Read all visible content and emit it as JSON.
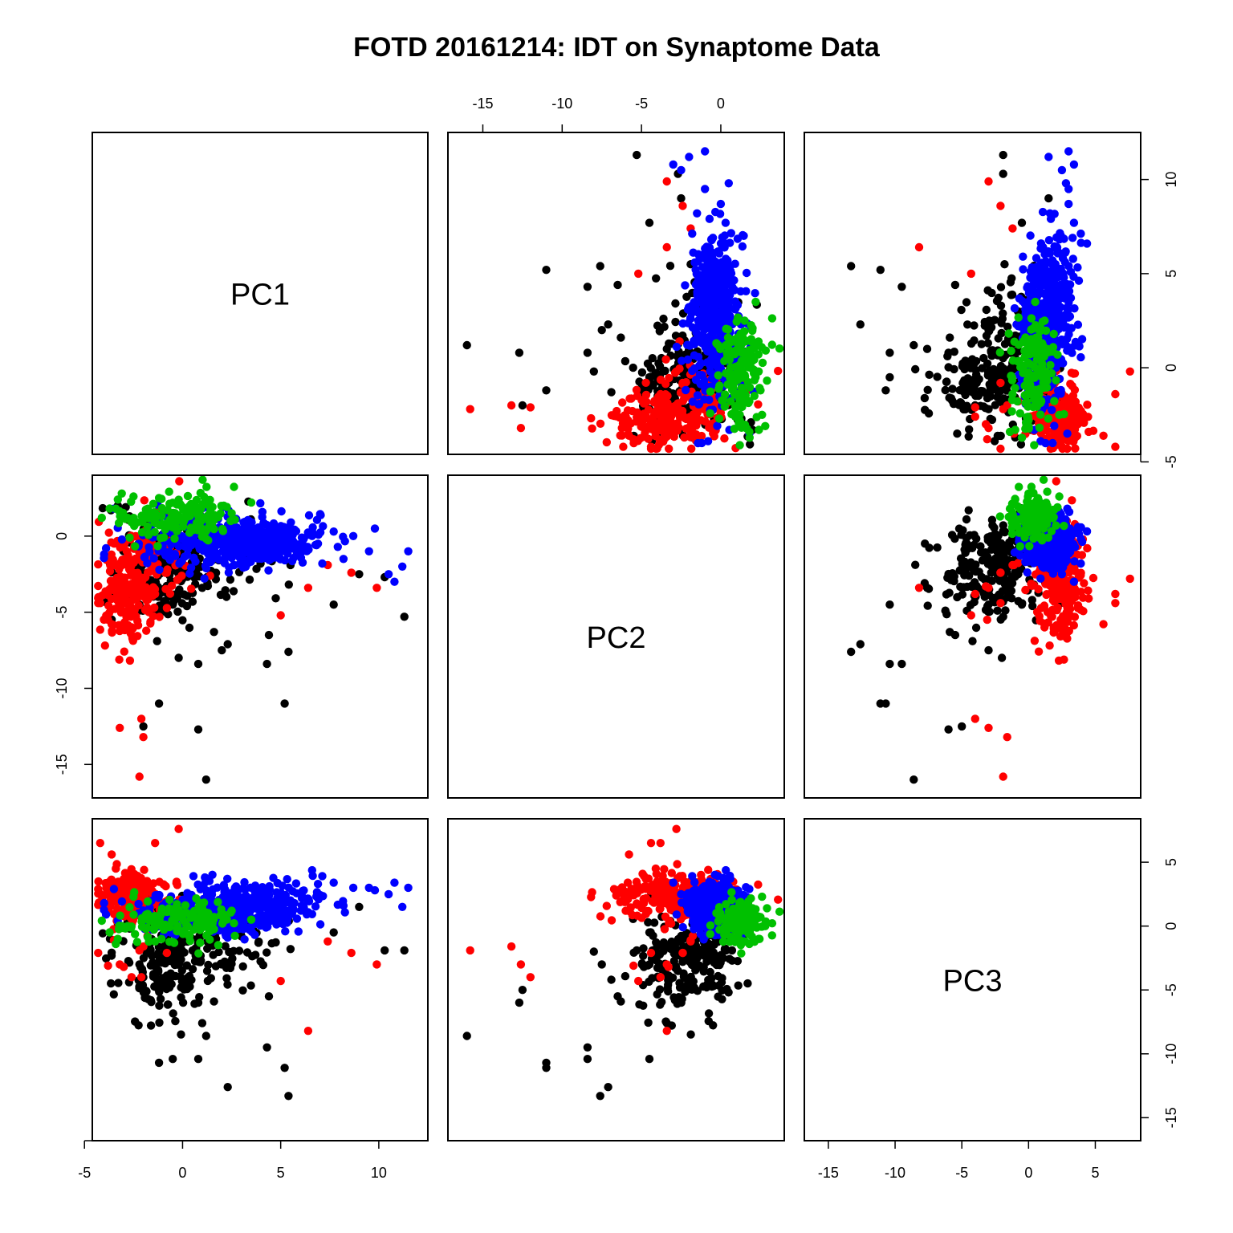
{
  "chart_data": {
    "type": "scatter",
    "title": "FOTD 20161214: IDT on Synaptome Data",
    "variables": [
      "PC1",
      "PC2",
      "PC3"
    ],
    "ranges": {
      "PC1": [
        -4.6,
        12.5
      ],
      "PC2": [
        -17.2,
        4.0
      ],
      "PC3": [
        -16.8,
        8.4
      ]
    },
    "ticks": {
      "PC1": [
        -5,
        0,
        5,
        10
      ],
      "PC2": [
        -15,
        -10,
        -5,
        0
      ],
      "PC3": [
        -15,
        -10,
        -5,
        0,
        5
      ]
    },
    "tick_labels": {
      "PC1": [
        "-5",
        "0",
        "5",
        "10"
      ],
      "PC2": [
        "-15",
        "-10",
        "-5",
        "0"
      ],
      "PC3": [
        "-15",
        "-10",
        "-5",
        "0",
        "5"
      ]
    },
    "grid": false,
    "point_count_per_group": [
      260,
      240,
      460,
      150
    ],
    "groups": [
      {
        "color": "#000000",
        "anchors": [
          [
            11.3,
            -5.3,
            -1.9
          ],
          [
            10.3,
            -2.7,
            -1.9
          ],
          [
            9.0,
            -2.5,
            1.5
          ],
          [
            7.7,
            -4.5,
            -0.5
          ],
          [
            5.4,
            -7.6,
            -13.3
          ],
          [
            5.2,
            -11.0,
            -11.1
          ],
          [
            4.3,
            -8.4,
            -9.5
          ],
          [
            4.4,
            -6.5,
            -5.5
          ],
          [
            2.3,
            -7.1,
            -12.6
          ],
          [
            1.6,
            -6.3,
            -5.9
          ],
          [
            1.2,
            -16.0,
            -8.6
          ],
          [
            0.8,
            -8.4,
            -10.4
          ],
          [
            0.8,
            -12.7,
            -6.0
          ],
          [
            1.0,
            -3.4,
            -7.6
          ],
          [
            -0.5,
            -4.5,
            -10.4
          ],
          [
            -1.2,
            -11.0,
            -10.7
          ],
          [
            -2.0,
            -12.5,
            -5.0
          ],
          [
            -1.3,
            -6.9,
            -4.2
          ],
          [
            -2.2,
            -4.5,
            -3.0
          ],
          [
            -3.7,
            -1.8,
            -1.0
          ],
          [
            -3.3,
            2.0,
            0.2
          ],
          [
            -2.9,
            1.9,
            1.1
          ],
          [
            -2.7,
            1.3,
            -0.2
          ],
          [
            3.0,
            -1.2,
            -0.8
          ],
          [
            5.5,
            -1.9,
            -1.8
          ],
          [
            -0.2,
            -8.0,
            -2.0
          ],
          [
            0.0,
            -2.8,
            -1.3
          ],
          [
            2.0,
            -7.5,
            -3.0
          ]
        ],
        "clouds": [
          {
            "c": [
              -1.0,
              -2.5,
              -3.2
            ],
            "s": [
              1.2,
              1.8,
              2.2
            ],
            "n": 150
          },
          {
            "c": [
              1.0,
              -1.2,
              -2.1
            ],
            "s": [
              2.2,
              1.4,
              1.5
            ],
            "n": 80
          }
        ]
      },
      {
        "color": "#ff0000",
        "anchors": [
          [
            -2.1,
            -12.0,
            -4.0
          ],
          [
            -2.2,
            -15.8,
            -1.9
          ],
          [
            -2.6,
            -3.8,
            -4.0
          ],
          [
            -3.2,
            -12.6,
            -3.0
          ],
          [
            -3.0,
            -3.3,
            -3.2
          ],
          [
            -2.0,
            -13.2,
            -1.6
          ],
          [
            -4.3,
            -4.4,
            -2.1
          ],
          [
            6.4,
            -3.4,
            -8.2
          ],
          [
            -3.8,
            -5.5,
            -3.1
          ],
          [
            -3.7,
            -2.3,
            3.5
          ],
          [
            -1.4,
            -3.8,
            6.5
          ],
          [
            -0.2,
            -2.8,
            7.6
          ],
          [
            -4.2,
            -4.4,
            6.5
          ],
          [
            -3.4,
            -4.1,
            4.5
          ],
          [
            1.4,
            -2.6,
            1.3
          ],
          [
            5.0,
            -5.2,
            -4.3
          ],
          [
            9.9,
            -3.4,
            -3.0
          ],
          [
            8.6,
            -2.4,
            -2.1
          ],
          [
            7.4,
            -1.9,
            -1.2
          ],
          [
            -3.5,
            -1.9,
            -1.1
          ],
          [
            -0.8,
            -2.4,
            -2.1
          ]
        ],
        "clouds": [
          {
            "c": [
              -2.8,
              -3.5,
              2.6
            ],
            "s": [
              0.7,
              1.8,
              0.9
            ],
            "n": 170
          },
          {
            "c": [
              -1.5,
              -1.5,
              1.5
            ],
            "s": [
              1.0,
              1.5,
              1.0
            ],
            "n": 60
          }
        ]
      },
      {
        "color": "#0000ff",
        "anchors": [
          [
            11.5,
            -1.0,
            3.0
          ],
          [
            11.2,
            -2.0,
            1.5
          ],
          [
            10.8,
            -3.0,
            3.4
          ],
          [
            10.5,
            -2.5,
            2.5
          ],
          [
            9.8,
            0.5,
            2.8
          ],
          [
            9.5,
            -1.0,
            3.0
          ],
          [
            8.7,
            0.0,
            3.0
          ],
          [
            8.2,
            -1.5,
            1.6
          ],
          [
            7.7,
            0.3,
            3.4
          ],
          [
            6.9,
            -0.5,
            3.3
          ],
          [
            -3.9,
            -0.8,
            0.9
          ],
          [
            -4.0,
            -1.2,
            1.8
          ],
          [
            -3.5,
            1.8,
            2.9
          ],
          [
            6.1,
            -0.5,
            2.3
          ]
        ],
        "clouds": [
          {
            "c": [
              2.0,
              -0.4,
              1.3
            ],
            "s": [
              2.0,
              0.9,
              1.0
            ],
            "n": 300
          },
          {
            "c": [
              4.5,
              -0.4,
              1.7
            ],
            "s": [
              1.4,
              0.7,
              0.9
            ],
            "n": 140
          }
        ]
      },
      {
        "color": "#00c000",
        "anchors": [
          [
            -3.1,
            2.8,
            0.0
          ],
          [
            -3.3,
            2.4,
            -1.0
          ],
          [
            -3.4,
            1.8,
            -1.4
          ],
          [
            2.1,
            2.0,
            0.9
          ],
          [
            3.5,
            2.2,
            0.5
          ],
          [
            -2.5,
            2.6,
            2.3
          ],
          [
            -1.2,
            2.5,
            0.7
          ],
          [
            1.0,
            2.0,
            1.4
          ],
          [
            2.5,
            1.5,
            1.2
          ],
          [
            -2.8,
            1.2,
            0.0
          ]
        ],
        "clouds": [
          {
            "c": [
              -0.2,
              1.2,
              0.4
            ],
            "s": [
              1.4,
              0.7,
              0.9
            ],
            "n": 140
          }
        ]
      }
    ]
  }
}
